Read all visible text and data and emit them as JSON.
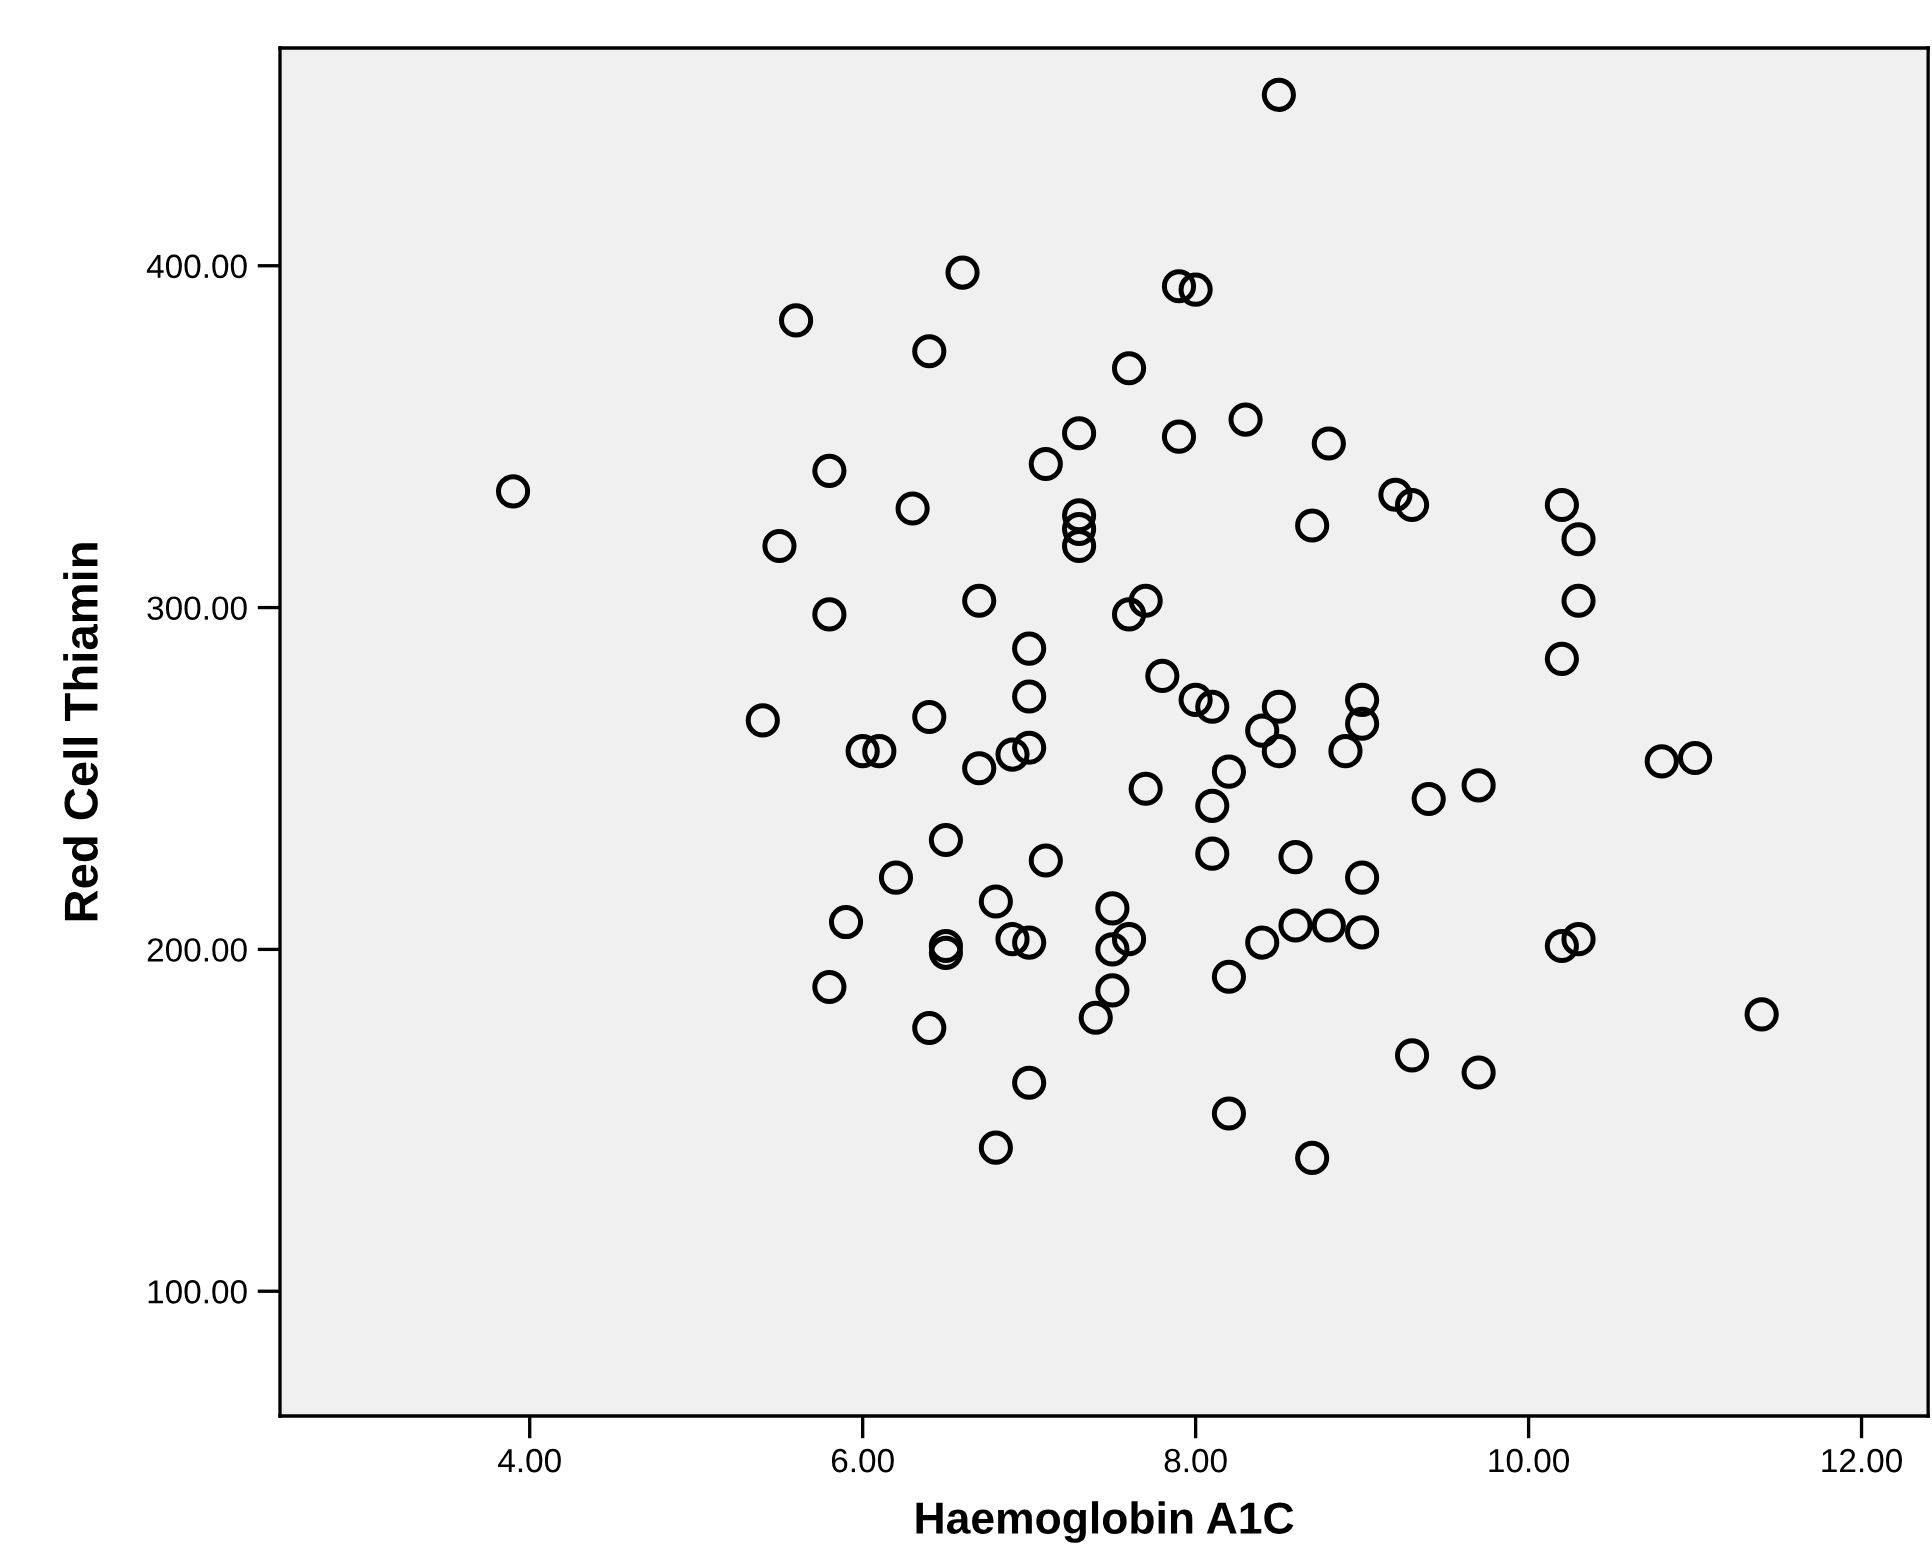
{
  "chart_data": {
    "type": "scatter",
    "xlabel": "Haemoglobin A1C",
    "ylabel": "Red Cell Thiamin",
    "x": [
      3.9,
      5.6,
      5.5,
      5.4,
      5.8,
      5.8,
      5.9,
      5.8,
      6.0,
      6.1,
      6.3,
      6.4,
      6.4,
      6.2,
      6.4,
      6.5,
      6.5,
      6.5,
      6.6,
      6.7,
      6.7,
      6.8,
      6.8,
      6.9,
      6.9,
      7.0,
      7.0,
      7.0,
      7.0,
      7.0,
      7.1,
      7.1,
      7.3,
      7.3,
      7.3,
      7.3,
      7.4,
      7.5,
      7.5,
      7.5,
      7.6,
      7.6,
      7.6,
      7.7,
      7.7,
      7.8,
      7.9,
      7.9,
      8.0,
      8.0,
      8.1,
      8.1,
      8.1,
      8.2,
      8.2,
      8.2,
      8.3,
      8.4,
      8.4,
      8.5,
      8.5,
      8.5,
      8.6,
      8.6,
      8.7,
      8.7,
      8.8,
      8.8,
      8.9,
      9.0,
      9.0,
      9.0,
      9.0,
      9.2,
      9.3,
      9.3,
      9.4,
      9.7,
      9.7,
      10.2,
      10.2,
      10.2,
      10.3,
      10.3,
      10.3,
      10.8,
      11.0,
      11.4
    ],
    "series": [
      {
        "color": "#000000",
        "values": [
          334,
          384,
          318,
          267,
          340,
          298,
          208,
          189,
          258,
          258,
          329,
          375,
          268,
          221,
          177,
          232,
          201,
          199,
          398,
          302,
          253,
          214,
          142,
          257,
          203,
          288,
          274,
          259,
          202,
          161,
          342,
          226,
          351,
          327,
          323,
          318,
          180,
          212,
          200,
          188,
          370,
          298,
          203,
          302,
          247,
          280,
          394,
          350,
          393,
          273,
          271,
          242,
          228,
          252,
          192,
          152,
          355,
          264,
          202,
          450,
          271,
          258,
          227,
          207,
          324,
          139,
          348,
          207,
          258,
          273,
          266,
          221,
          205,
          333,
          330,
          169,
          244,
          248,
          164,
          330,
          285,
          201,
          320,
          302,
          203,
          255,
          256,
          181
        ]
      }
    ],
    "marker": "circle",
    "xlim": [
      2.5,
      12.4
    ],
    "ylim": [
      63.5,
      463.7
    ],
    "xticks": [
      {
        "value": 4,
        "label": "4.00"
      },
      {
        "value": 6,
        "label": "6.00"
      },
      {
        "value": 8,
        "label": "8.00"
      },
      {
        "value": 10,
        "label": "10.00"
      },
      {
        "value": 12,
        "label": "12.00"
      }
    ],
    "yticks": [
      {
        "value": 100,
        "label": "100.00"
      },
      {
        "value": 200,
        "label": "200.00"
      },
      {
        "value": 300,
        "label": "300.00"
      },
      {
        "value": 400,
        "label": "400.00"
      }
    ],
    "grid": false,
    "legend": false
  }
}
